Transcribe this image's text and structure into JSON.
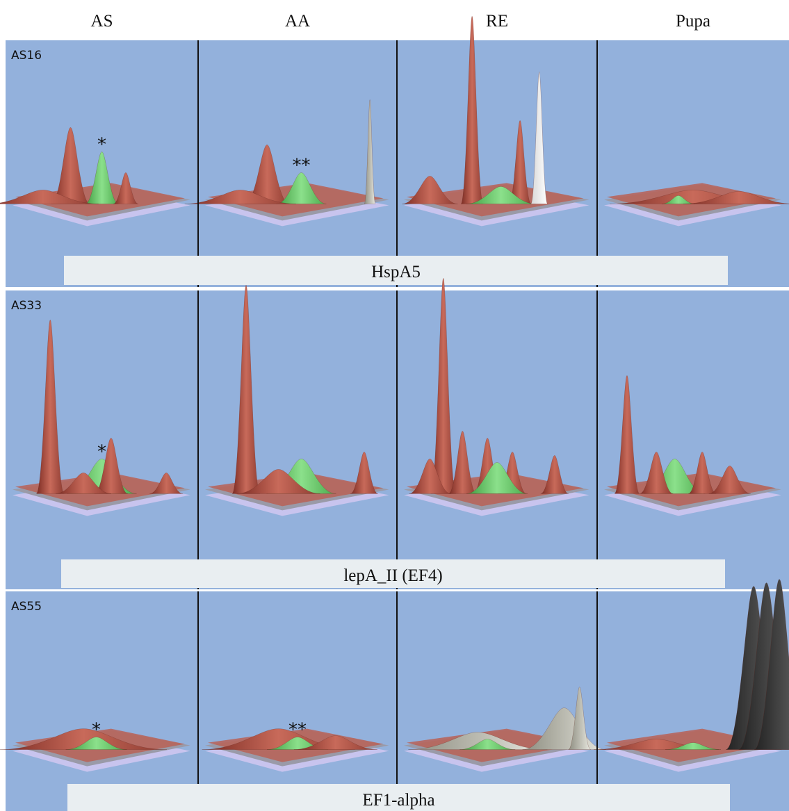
{
  "columns": [
    "AS",
    "AA",
    "RE",
    "Pupa"
  ],
  "rows": [
    {
      "spot": "AS16",
      "protein": "HspA5",
      "marks": [
        "*",
        "**"
      ]
    },
    {
      "spot": "AS33",
      "protein": "lepA_II (EF4)",
      "marks": [
        "*"
      ]
    },
    {
      "spot": "AS55",
      "protein": "EF1-alpha",
      "marks": [
        "*",
        "**"
      ]
    }
  ]
}
